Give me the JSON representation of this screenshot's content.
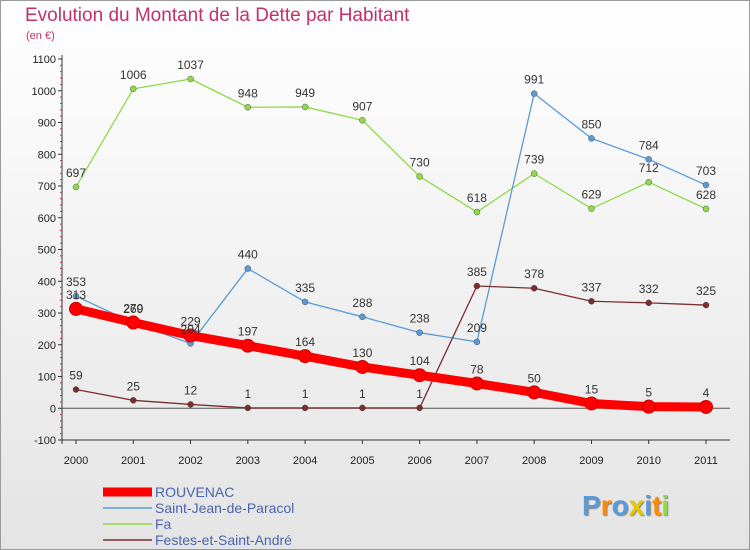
{
  "title": "Evolution du Montant de la Dette par Habitant",
  "subtitle": "(en €)",
  "logo_text": "Proxiti",
  "chart_data": {
    "type": "line",
    "title": "Evolution du Montant de la Dette par Habitant",
    "subtitle": "(en €)",
    "x": [
      "2000",
      "2001",
      "2002",
      "2003",
      "2004",
      "2005",
      "2006",
      "2007",
      "2008",
      "2009",
      "2010",
      "2011"
    ],
    "ylim": [
      -100,
      1100
    ],
    "yticks": [
      -100,
      0,
      100,
      200,
      300,
      400,
      500,
      600,
      700,
      800,
      900,
      1000,
      1100
    ],
    "grid": false,
    "legend_position": "bottom-left",
    "series": [
      {
        "name": "ROUVENAC",
        "color": "#ff0000",
        "values": [
          313,
          270,
          229,
          197,
          164,
          130,
          104,
          78,
          50,
          15,
          5,
          4
        ],
        "labels": [
          "313",
          "270",
          "229",
          "197",
          "164",
          "130",
          "104",
          "78",
          "50",
          "15",
          "5",
          "4"
        ]
      },
      {
        "name": "Saint-Jean-de-Paracol",
        "color": "#5b9bd5",
        "values": [
          353,
          269,
          204,
          440,
          335,
          288,
          238,
          209,
          991,
          850,
          784,
          703
        ],
        "labels": [
          "353",
          "269",
          "204",
          "440",
          "335",
          "288",
          "238",
          "209",
          "991",
          "850",
          "784",
          "703"
        ]
      },
      {
        "name": "Fa",
        "color": "#8fd94a",
        "values": [
          697,
          1006,
          1037,
          948,
          949,
          907,
          730,
          618,
          739,
          629,
          712,
          628
        ],
        "labels": [
          "697",
          "1006",
          "1037",
          "948",
          "949",
          "907",
          "730",
          "618",
          "739",
          "629",
          "712",
          "628"
        ]
      },
      {
        "name": "Festes-et-Saint-André",
        "color": "#7a2e2e",
        "values": [
          59,
          25,
          12,
          1,
          1,
          1,
          1,
          385,
          378,
          337,
          332,
          325
        ],
        "labels": [
          "59",
          "25",
          "12",
          "1",
          "1",
          "1",
          "1",
          "385",
          "378",
          "337",
          "332",
          "325"
        ]
      }
    ]
  }
}
